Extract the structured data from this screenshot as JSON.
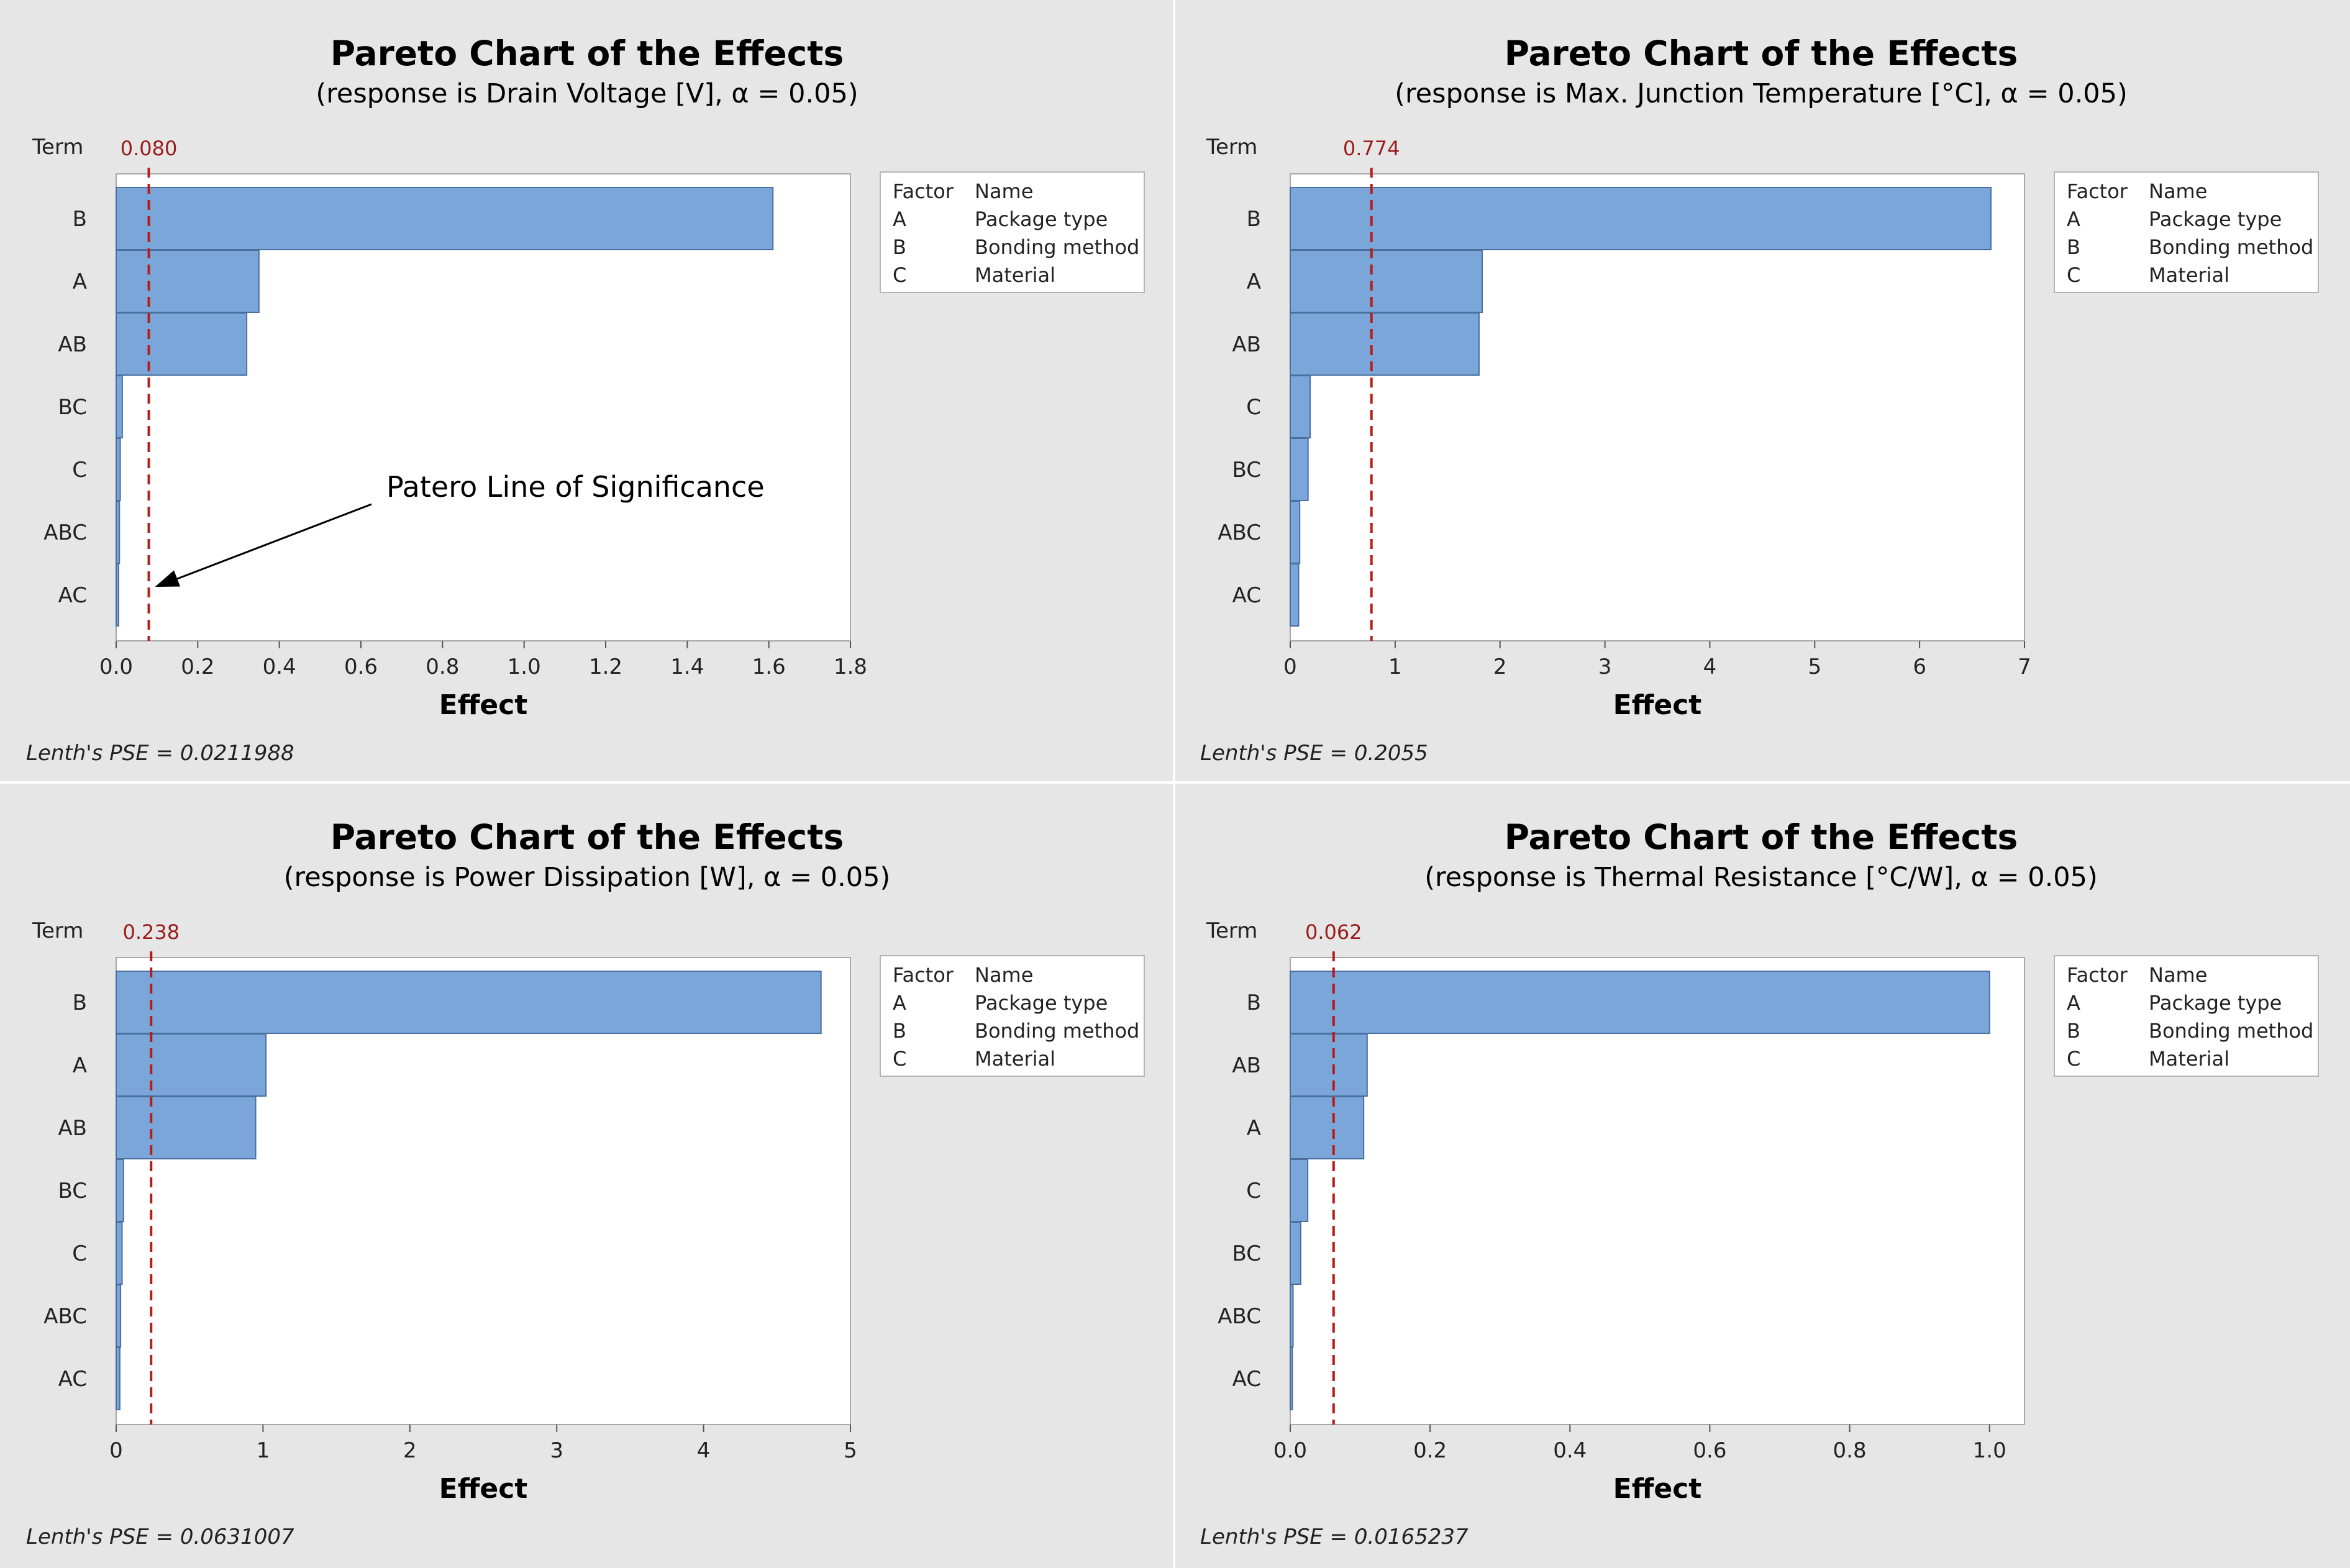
{
  "chart_data": [
    {
      "type": "bar",
      "orientation": "horizontal",
      "title": "Pareto Chart of the Effects",
      "subtitle": "(response is Drain Voltage [V], α = 0.05)",
      "term_label": "Term",
      "xlabel": "Effect",
      "categories": [
        "B",
        "A",
        "AB",
        "BC",
        "C",
        "ABC",
        "AC"
      ],
      "values": [
        1.61,
        0.35,
        0.32,
        0.015,
        0.01,
        0.008,
        0.006
      ],
      "xlim": [
        0,
        1.8
      ],
      "xticks": [
        0.0,
        0.2,
        0.4,
        0.6,
        0.8,
        1.0,
        1.2,
        1.4,
        1.6,
        1.8
      ],
      "xtick_labels": [
        "0.0",
        "0.2",
        "0.4",
        "0.6",
        "0.8",
        "1.0",
        "1.2",
        "1.4",
        "1.6",
        "1.8"
      ],
      "critical_value": 0.08,
      "critical_label": "0.080",
      "legend": {
        "headers": [
          "Factor",
          "Name"
        ],
        "rows": [
          [
            "A",
            "Package type"
          ],
          [
            "B",
            "Bonding method"
          ],
          [
            "C",
            "Material"
          ]
        ]
      },
      "footnote": "Lenth's PSE = 0.0211988",
      "annotation": "Patero Line of Significance"
    },
    {
      "type": "bar",
      "orientation": "horizontal",
      "title": "Pareto Chart of the Effects",
      "subtitle": "(response is Max. Junction Temperature [°C], α = 0.05)",
      "term_label": "Term",
      "xlabel": "Effect",
      "categories": [
        "B",
        "A",
        "AB",
        "C",
        "BC",
        "ABC",
        "AC"
      ],
      "values": [
        6.68,
        1.83,
        1.8,
        0.19,
        0.17,
        0.09,
        0.08
      ],
      "xlim": [
        0,
        7
      ],
      "xticks": [
        0,
        1,
        2,
        3,
        4,
        5,
        6,
        7
      ],
      "xtick_labels": [
        "0",
        "1",
        "2",
        "3",
        "4",
        "5",
        "6",
        "7"
      ],
      "critical_value": 0.774,
      "critical_label": "0.774",
      "legend": {
        "headers": [
          "Factor",
          "Name"
        ],
        "rows": [
          [
            "A",
            "Package type"
          ],
          [
            "B",
            "Bonding method"
          ],
          [
            "C",
            "Material"
          ]
        ]
      },
      "footnote": "Lenth's PSE = 0.2055"
    },
    {
      "type": "bar",
      "orientation": "horizontal",
      "title": "Pareto Chart of the Effects",
      "subtitle": "(response is Power Dissipation [W], α = 0.05)",
      "term_label": "Term",
      "xlabel": "Effect",
      "categories": [
        "B",
        "A",
        "AB",
        "BC",
        "C",
        "ABC",
        "AC"
      ],
      "values": [
        4.8,
        1.02,
        0.95,
        0.05,
        0.04,
        0.03,
        0.025
      ],
      "xlim": [
        0,
        5
      ],
      "xticks": [
        0,
        1,
        2,
        3,
        4,
        5
      ],
      "xtick_labels": [
        "0",
        "1",
        "2",
        "3",
        "4",
        "5"
      ],
      "critical_value": 0.238,
      "critical_label": "0.238",
      "legend": {
        "headers": [
          "Factor",
          "Name"
        ],
        "rows": [
          [
            "A",
            "Package type"
          ],
          [
            "B",
            "Bonding method"
          ],
          [
            "C",
            "Material"
          ]
        ]
      },
      "footnote": "Lenth's PSE = 0.0631007"
    },
    {
      "type": "bar",
      "orientation": "horizontal",
      "title": "Pareto Chart of the Effects",
      "subtitle": "(response is Thermal Resistance [°C/W], α = 0.05)",
      "term_label": "Term",
      "xlabel": "Effect",
      "categories": [
        "B",
        "AB",
        "A",
        "C",
        "BC",
        "ABC",
        "AC"
      ],
      "values": [
        1.0,
        0.11,
        0.105,
        0.025,
        0.015,
        0.004,
        0.003
      ],
      "xlim": [
        0,
        1.05
      ],
      "xticks": [
        0.0,
        0.2,
        0.4,
        0.6,
        0.8,
        1.0
      ],
      "xtick_labels": [
        "0.0",
        "0.2",
        "0.4",
        "0.6",
        "0.8",
        "1.0"
      ],
      "critical_value": 0.062,
      "critical_label": "0.062",
      "legend": {
        "headers": [
          "Factor",
          "Name"
        ],
        "rows": [
          [
            "A",
            "Package type"
          ],
          [
            "B",
            "Bonding method"
          ],
          [
            "C",
            "Material"
          ]
        ]
      },
      "footnote": "Lenth's PSE = 0.0165237"
    }
  ]
}
